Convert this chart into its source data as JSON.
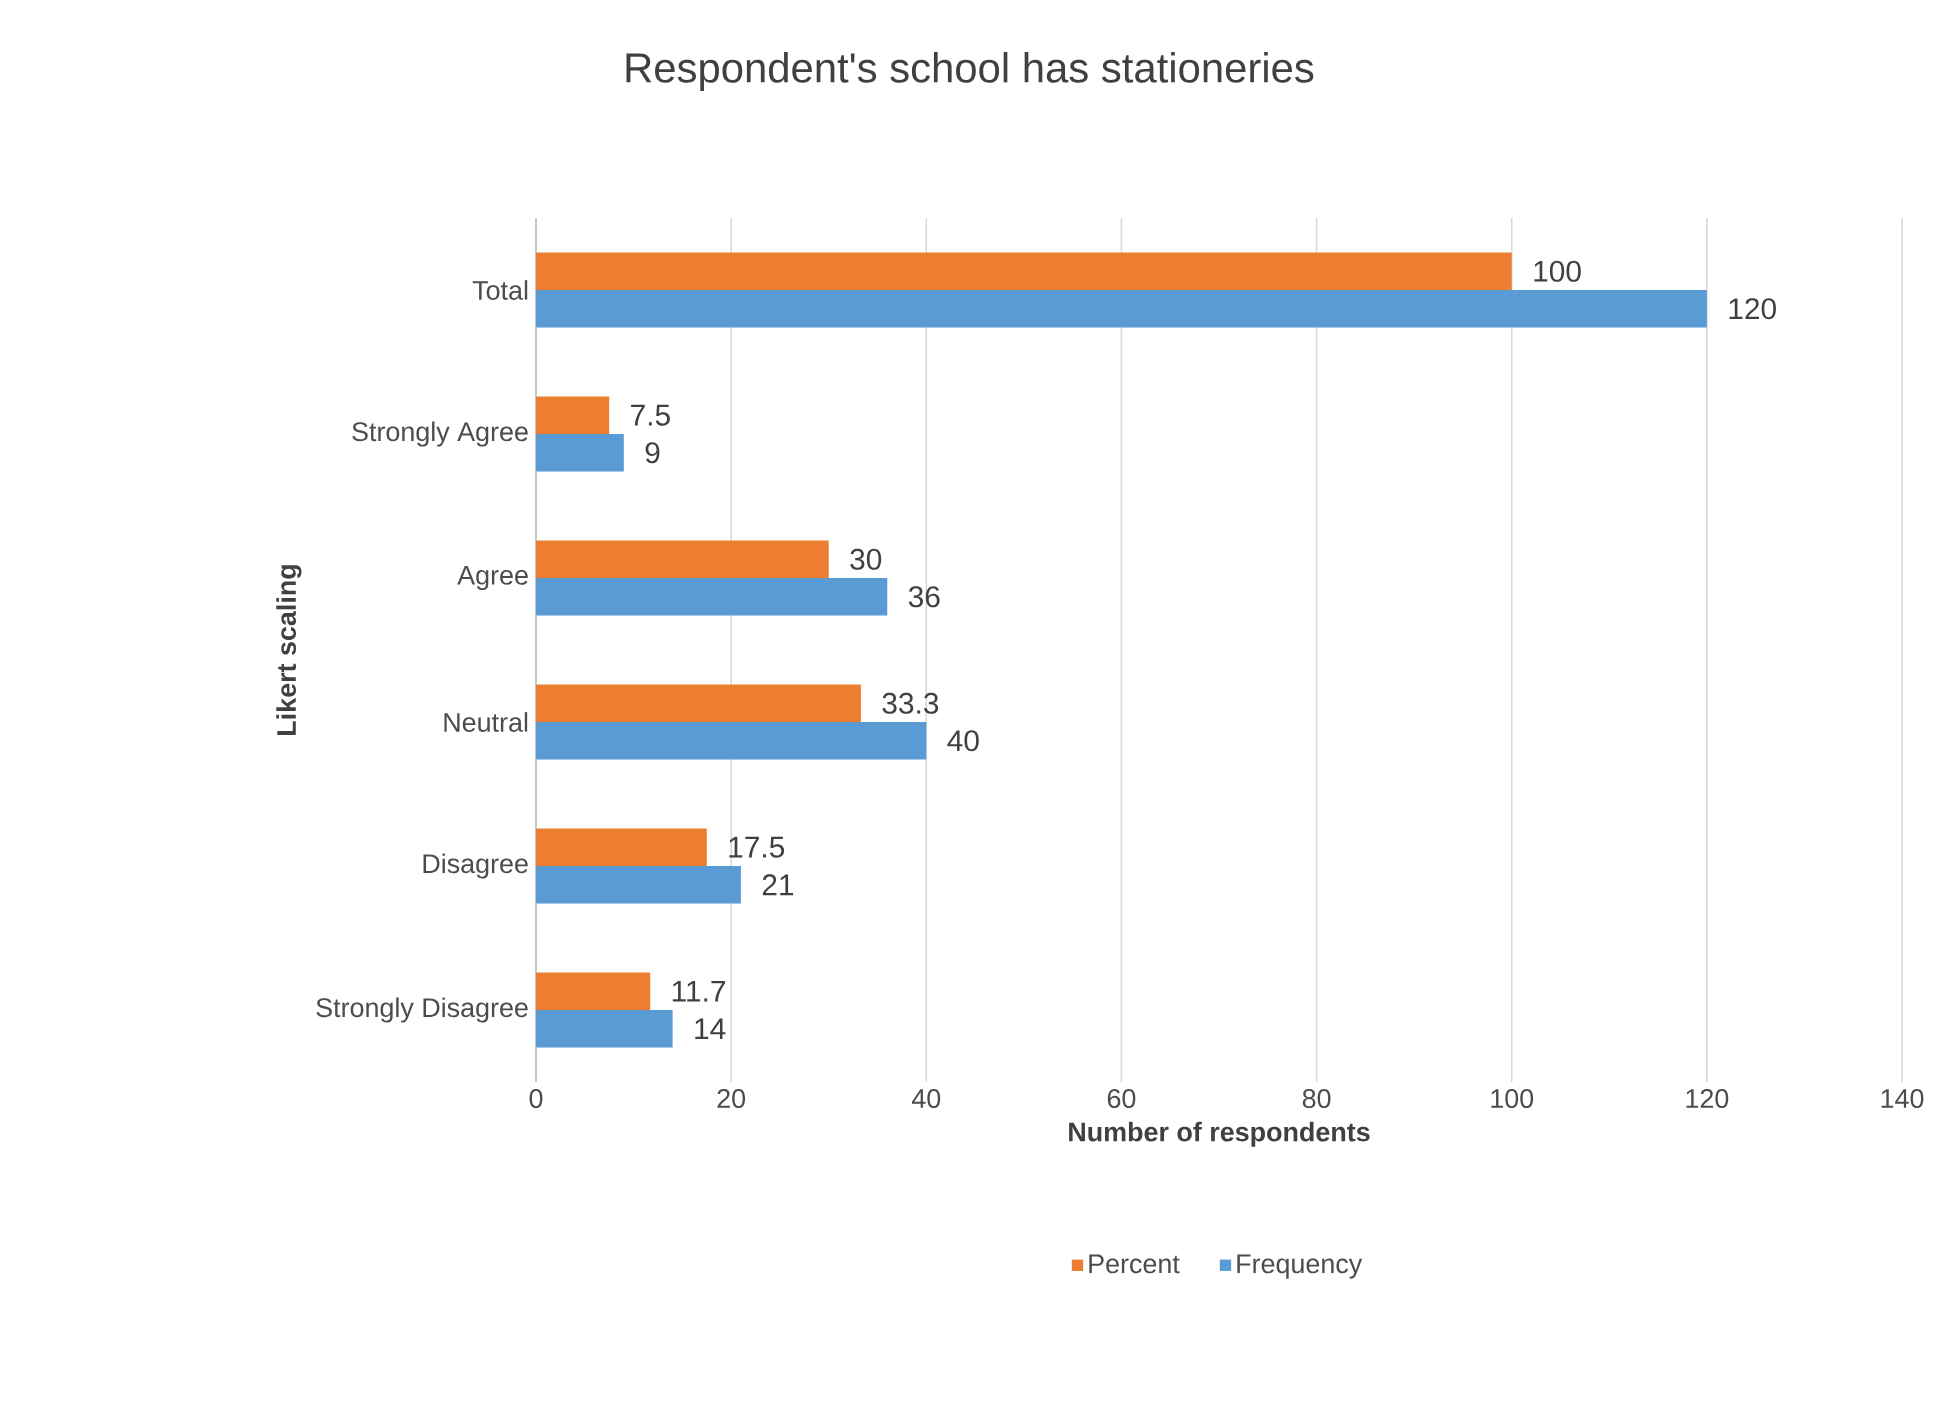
{
  "chart_data": {
    "type": "bar",
    "orientation": "horizontal",
    "title": "Respondent's school has stationeries",
    "xlabel": "Number of respondents",
    "ylabel": "Likert scaling",
    "categories": [
      "Total",
      "Strongly Agree",
      "Agree",
      "Neutral",
      "Disagree",
      "Strongly Disagree"
    ],
    "series": [
      {
        "name": "Percent",
        "color": "#ed7d31",
        "values": [
          100,
          7.5,
          30,
          33.3,
          17.5,
          11.7
        ]
      },
      {
        "name": "Frequency",
        "color": "#5b9bd5",
        "values": [
          120,
          9,
          36,
          40,
          21,
          14
        ]
      }
    ],
    "xlim": [
      0,
      140
    ],
    "xticks": [
      0,
      20,
      40,
      60,
      80,
      100,
      120,
      140
    ],
    "grid": "x",
    "legend": "bottom",
    "data_labels": true
  }
}
